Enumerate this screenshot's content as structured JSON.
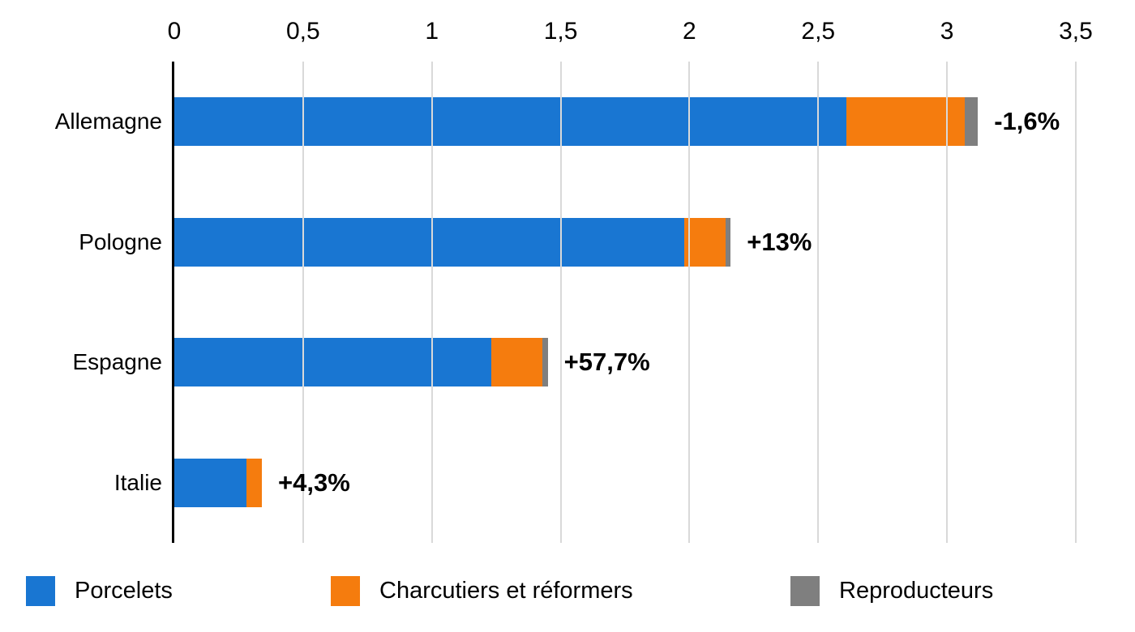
{
  "chart_data": {
    "type": "bar",
    "orientation": "horizontal",
    "stacked": true,
    "title": "",
    "xlabel": "",
    "ylabel": "",
    "categories": [
      "Allemagne",
      "Pologne",
      "Espagne",
      "Italie"
    ],
    "series": [
      {
        "name": "Porcelets",
        "color": "#1976D2",
        "values": [
          2.61,
          1.98,
          1.23,
          0.28
        ]
      },
      {
        "name": "Charcutiers et réformers",
        "color": "#F57C0E",
        "values": [
          0.46,
          0.16,
          0.2,
          0.06
        ]
      },
      {
        "name": "Reproducteurs",
        "color": "#7F7F7F",
        "values": [
          0.05,
          0.02,
          0.02,
          0
        ]
      }
    ],
    "bar_labels": [
      "-1,6%",
      "+13%",
      "+57,7%",
      "+4,3%"
    ],
    "x_axis": {
      "position": "top",
      "min": 0,
      "max": 3.5,
      "tick_values": [
        0,
        0.5,
        1,
        1.5,
        2,
        2.5,
        3,
        3.5
      ],
      "tick_labels": [
        "0",
        "0,5",
        "1",
        "1,5",
        "2",
        "2,5",
        "3",
        "3,5"
      ],
      "gridlines": true
    },
    "legend_position": "bottom",
    "colors": {
      "grid": "#D9D9D9",
      "axis": "#000000",
      "text": "#000000",
      "background": "#FFFFFF"
    }
  }
}
